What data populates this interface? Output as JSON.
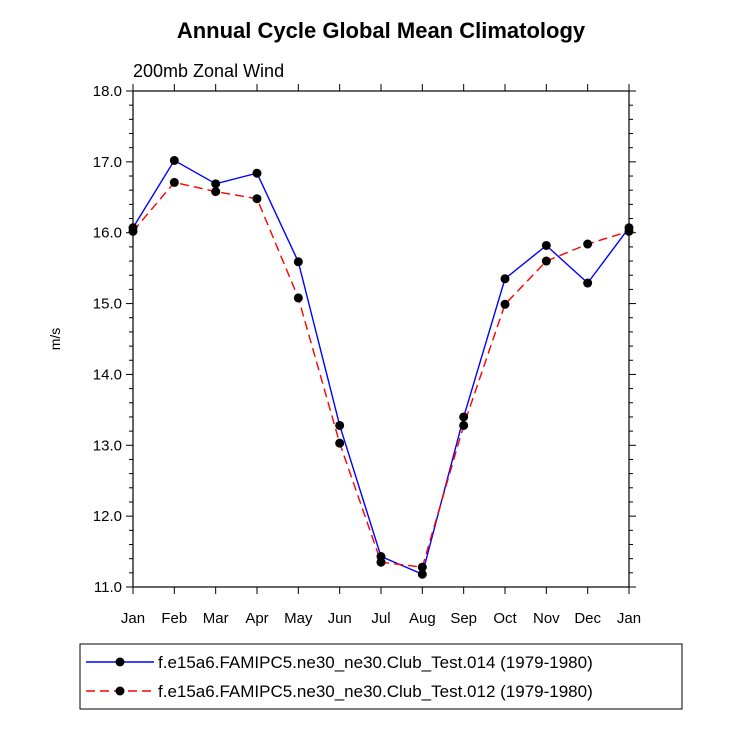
{
  "chart_data": {
    "type": "line",
    "title": "Annual Cycle Global Mean Climatology",
    "subtitle": "200mb Zonal Wind",
    "xlabel": "",
    "ylabel": "m/s",
    "categories": [
      "Jan",
      "Feb",
      "Mar",
      "Apr",
      "May",
      "Jun",
      "Jul",
      "Aug",
      "Sep",
      "Oct",
      "Nov",
      "Dec",
      "Jan"
    ],
    "ylim": [
      11.0,
      18.0
    ],
    "yticks": [
      "11.0",
      "12.0",
      "13.0",
      "14.0",
      "15.0",
      "16.0",
      "17.0",
      "18.0"
    ],
    "grid": false,
    "legend_position": "bottom",
    "series": [
      {
        "name": "f.e15a6.FAMIPC5.ne30_ne30.Club_Test.014 (1979-1980)",
        "color": "#0000ff",
        "style": "solid",
        "values": [
          16.07,
          17.02,
          16.69,
          16.84,
          15.59,
          13.28,
          11.43,
          11.18,
          13.4,
          15.35,
          15.82,
          15.29,
          16.07
        ]
      },
      {
        "name": "f.e15a6.FAMIPC5.ne30_ne30.Club_Test.012 (1979-1980)",
        "color": "#ff0000",
        "style": "dashed",
        "values": [
          16.02,
          16.71,
          16.58,
          16.48,
          15.08,
          13.03,
          11.35,
          11.28,
          13.28,
          14.99,
          15.6,
          15.84,
          16.02
        ]
      }
    ]
  }
}
